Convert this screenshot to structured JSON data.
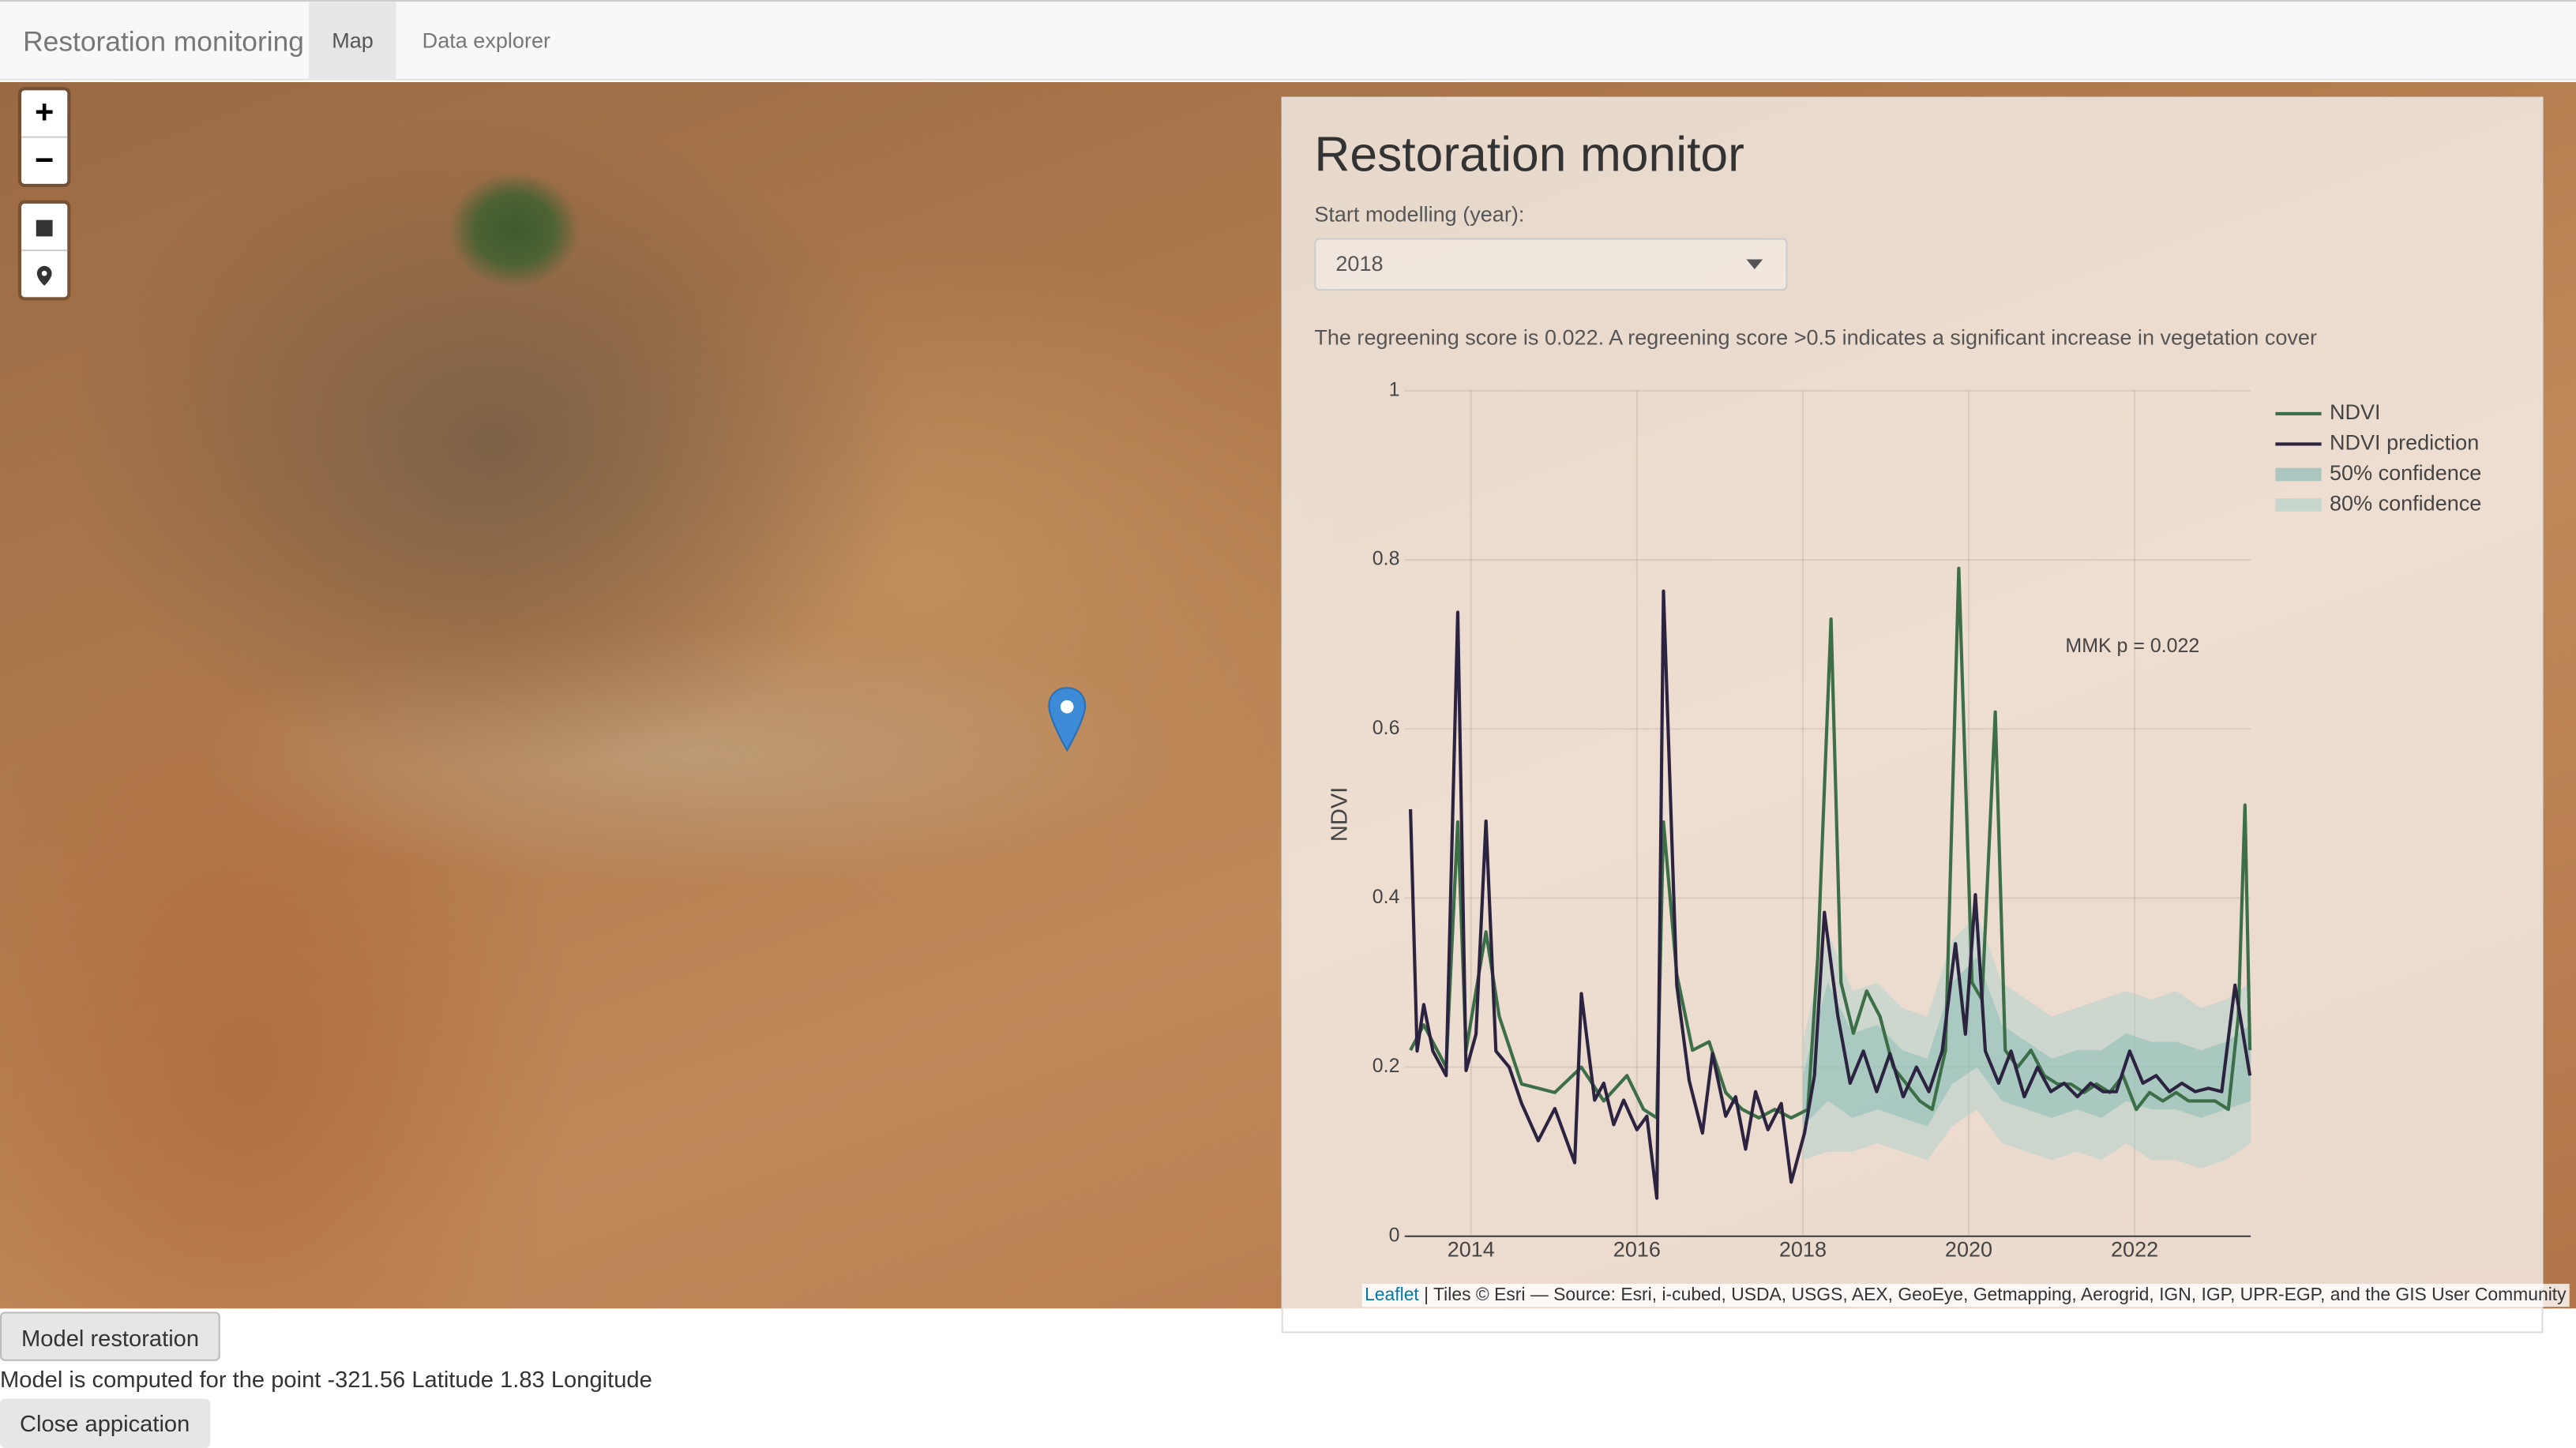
{
  "navbar": {
    "brand": "Restoration monitoring",
    "tabs": [
      "Map",
      "Data explorer"
    ]
  },
  "map": {
    "zoom_in": "+",
    "zoom_out": "−",
    "attribution_link": "Leaflet",
    "attribution_text": "| Tiles © Esri — Source: Esri, i-cubed, USDA, USGS, AEX, GeoEye, Getmapping, Aerogrid, IGN, IGP, UPR-EGP, and the GIS User Community"
  },
  "panel": {
    "title": "Restoration monitor",
    "select_label": "Start modelling (year):",
    "select_value": "2018",
    "score_text": "The regreening score is 0.022. A regreening score >0.5 indicates a significant increase in vegetation cover"
  },
  "chart_data": {
    "type": "line",
    "ylabel": "NDVI",
    "annotation": "MMK p = 0.022",
    "grid": true,
    "legend": "right",
    "xlim": [
      2013.2,
      2023.4
    ],
    "xticks": [
      2014,
      2016,
      2018,
      2020,
      2022
    ],
    "ylim": [
      0,
      1
    ],
    "yticks": [
      0,
      0.2,
      0.4,
      0.6,
      0.8,
      1
    ],
    "series": [
      {
        "name": "NDVI",
        "color": "#3c6e47",
        "x": [
          2013.27,
          2013.43,
          2013.7,
          2013.84,
          2013.94,
          2014.18,
          2014.34,
          2014.61,
          2015.01,
          2015.33,
          2015.6,
          2015.88,
          2016.08,
          2016.24,
          2016.32,
          2016.48,
          2016.67,
          2016.87,
          2017.07,
          2017.27,
          2017.47,
          2017.66,
          2017.86,
          2018.06,
          2018.18,
          2018.34,
          2018.46,
          2018.61,
          2018.77,
          2018.93,
          2019.09,
          2019.25,
          2019.41,
          2019.56,
          2019.72,
          2019.88,
          2020.04,
          2020.16,
          2020.32,
          2020.44,
          2020.59,
          2020.75,
          2020.91,
          2021.07,
          2021.23,
          2021.39,
          2021.54,
          2021.7,
          2021.86,
          2022.02,
          2022.18,
          2022.34,
          2022.5,
          2022.65,
          2022.81,
          2022.97,
          2023.13,
          2023.25,
          2023.33,
          2023.39
        ],
        "values": [
          0.22,
          0.25,
          0.2,
          0.49,
          0.22,
          0.36,
          0.26,
          0.18,
          0.17,
          0.2,
          0.16,
          0.19,
          0.15,
          0.14,
          0.49,
          0.31,
          0.22,
          0.23,
          0.17,
          0.15,
          0.14,
          0.15,
          0.14,
          0.15,
          0.33,
          0.73,
          0.3,
          0.24,
          0.29,
          0.26,
          0.2,
          0.18,
          0.16,
          0.15,
          0.22,
          0.79,
          0.3,
          0.28,
          0.62,
          0.22,
          0.2,
          0.22,
          0.19,
          0.18,
          0.18,
          0.17,
          0.18,
          0.17,
          0.19,
          0.15,
          0.17,
          0.16,
          0.17,
          0.16,
          0.16,
          0.16,
          0.15,
          0.26,
          0.51,
          0.22
        ]
      },
      {
        "name": "NDVI prediction",
        "color": "#2b2340",
        "x": [
          2013.27,
          2013.35,
          2013.43,
          2013.54,
          2013.7,
          2013.84,
          2013.94,
          2014.06,
          2014.18,
          2014.3,
          2014.46,
          2014.61,
          2014.81,
          2015.01,
          2015.25,
          2015.33,
          2015.49,
          2015.6,
          2015.72,
          2015.84,
          2016.0,
          2016.12,
          2016.24,
          2016.32,
          2016.48,
          2016.63,
          2016.79,
          2016.91,
          2017.07,
          2017.19,
          2017.31,
          2017.43,
          2017.58,
          2017.74,
          2017.86,
          2018.02,
          2018.14,
          2018.26,
          2018.42,
          2018.57,
          2018.73,
          2018.89,
          2019.05,
          2019.21,
          2019.37,
          2019.52,
          2019.68,
          2019.84,
          2019.96,
          2020.08,
          2020.2,
          2020.36,
          2020.51,
          2020.67,
          2020.83,
          2020.99,
          2021.15,
          2021.31,
          2021.47,
          2021.62,
          2021.78,
          2021.94,
          2022.1,
          2022.26,
          2022.42,
          2022.57,
          2022.73,
          2022.89,
          2023.05,
          2023.21,
          2023.39
        ],
        "values": [
          0.505,
          0.219,
          0.274,
          0.219,
          0.19,
          0.738,
          0.196,
          0.239,
          0.491,
          0.219,
          0.2,
          0.157,
          0.113,
          0.151,
          0.087,
          0.287,
          0.161,
          0.181,
          0.132,
          0.161,
          0.126,
          0.142,
          0.045,
          0.763,
          0.297,
          0.184,
          0.122,
          0.216,
          0.142,
          0.165,
          0.103,
          0.171,
          0.126,
          0.157,
          0.064,
          0.122,
          0.19,
          0.383,
          0.262,
          0.181,
          0.219,
          0.171,
          0.216,
          0.165,
          0.2,
          0.171,
          0.219,
          0.346,
          0.239,
          0.404,
          0.219,
          0.181,
          0.219,
          0.165,
          0.2,
          0.171,
          0.181,
          0.165,
          0.181,
          0.171,
          0.171,
          0.219,
          0.181,
          0.19,
          0.171,
          0.181,
          0.171,
          0.175,
          0.171,
          0.297,
          0.19
        ]
      }
    ],
    "bands": [
      {
        "name": "50% confidence",
        "color": "#7fb8b2",
        "x": [
          2018.0,
          2018.3,
          2018.6,
          2018.9,
          2019.2,
          2019.5,
          2019.8,
          2020.1,
          2020.4,
          2020.7,
          2021.0,
          2021.3,
          2021.6,
          2021.9,
          2022.2,
          2022.5,
          2022.8,
          2023.1,
          2023.4
        ],
        "lower": [
          0.13,
          0.16,
          0.14,
          0.15,
          0.14,
          0.13,
          0.18,
          0.2,
          0.16,
          0.15,
          0.14,
          0.15,
          0.14,
          0.16,
          0.15,
          0.15,
          0.14,
          0.15,
          0.16
        ],
        "upper": [
          0.19,
          0.3,
          0.24,
          0.25,
          0.22,
          0.21,
          0.3,
          0.33,
          0.25,
          0.23,
          0.21,
          0.22,
          0.22,
          0.24,
          0.23,
          0.23,
          0.22,
          0.23,
          0.25
        ]
      },
      {
        "name": "80% confidence",
        "color": "#a9d1cc",
        "x": [
          2018.0,
          2018.3,
          2018.6,
          2018.9,
          2019.2,
          2019.5,
          2019.8,
          2020.1,
          2020.4,
          2020.7,
          2021.0,
          2021.3,
          2021.6,
          2021.9,
          2022.2,
          2022.5,
          2022.8,
          2023.1,
          2023.4
        ],
        "lower": [
          0.09,
          0.1,
          0.1,
          0.11,
          0.1,
          0.09,
          0.13,
          0.15,
          0.11,
          0.1,
          0.09,
          0.1,
          0.09,
          0.11,
          0.09,
          0.09,
          0.08,
          0.09,
          0.11
        ],
        "upper": [
          0.23,
          0.36,
          0.29,
          0.3,
          0.27,
          0.26,
          0.35,
          0.38,
          0.3,
          0.28,
          0.26,
          0.27,
          0.28,
          0.29,
          0.28,
          0.29,
          0.27,
          0.28,
          0.3
        ]
      }
    ]
  },
  "footer": {
    "model_button": "Model restoration",
    "status": "Model is computed for the point -321.56 Latitude 1.83 Longitude",
    "close_button": "Close appication"
  }
}
